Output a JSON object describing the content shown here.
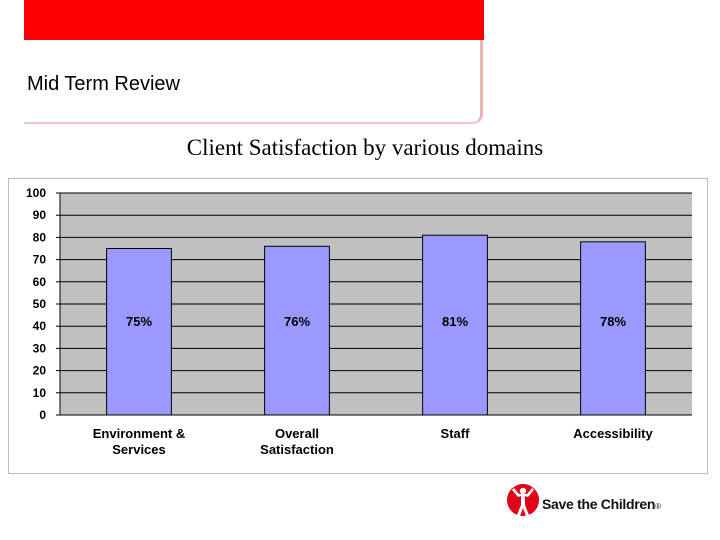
{
  "header": {
    "slide_title": "Mid Term Review",
    "accent_color": "#ff0000"
  },
  "chart_data": {
    "type": "bar",
    "title": "Client Satisfaction by various domains",
    "categories": [
      [
        "Environment &",
        "Services"
      ],
      [
        "Overall",
        "Satisfaction"
      ],
      [
        "Staff"
      ],
      [
        "Accessibility"
      ]
    ],
    "values": [
      75,
      76,
      81,
      78
    ],
    "data_labels": [
      "75%",
      "76%",
      "81%",
      "78%"
    ],
    "ylim": [
      0,
      100
    ],
    "yticks": [
      0,
      10,
      20,
      30,
      40,
      50,
      60,
      70,
      80,
      90,
      100
    ],
    "grid": true,
    "legend": "none",
    "bar_color": "#9999ff",
    "plot_background": "#c0c0c0"
  },
  "footer": {
    "logo_text": "Save the Children",
    "logo_mark": "®",
    "logo_icon": "child-figure-icon",
    "logo_color": "#e2001a"
  }
}
